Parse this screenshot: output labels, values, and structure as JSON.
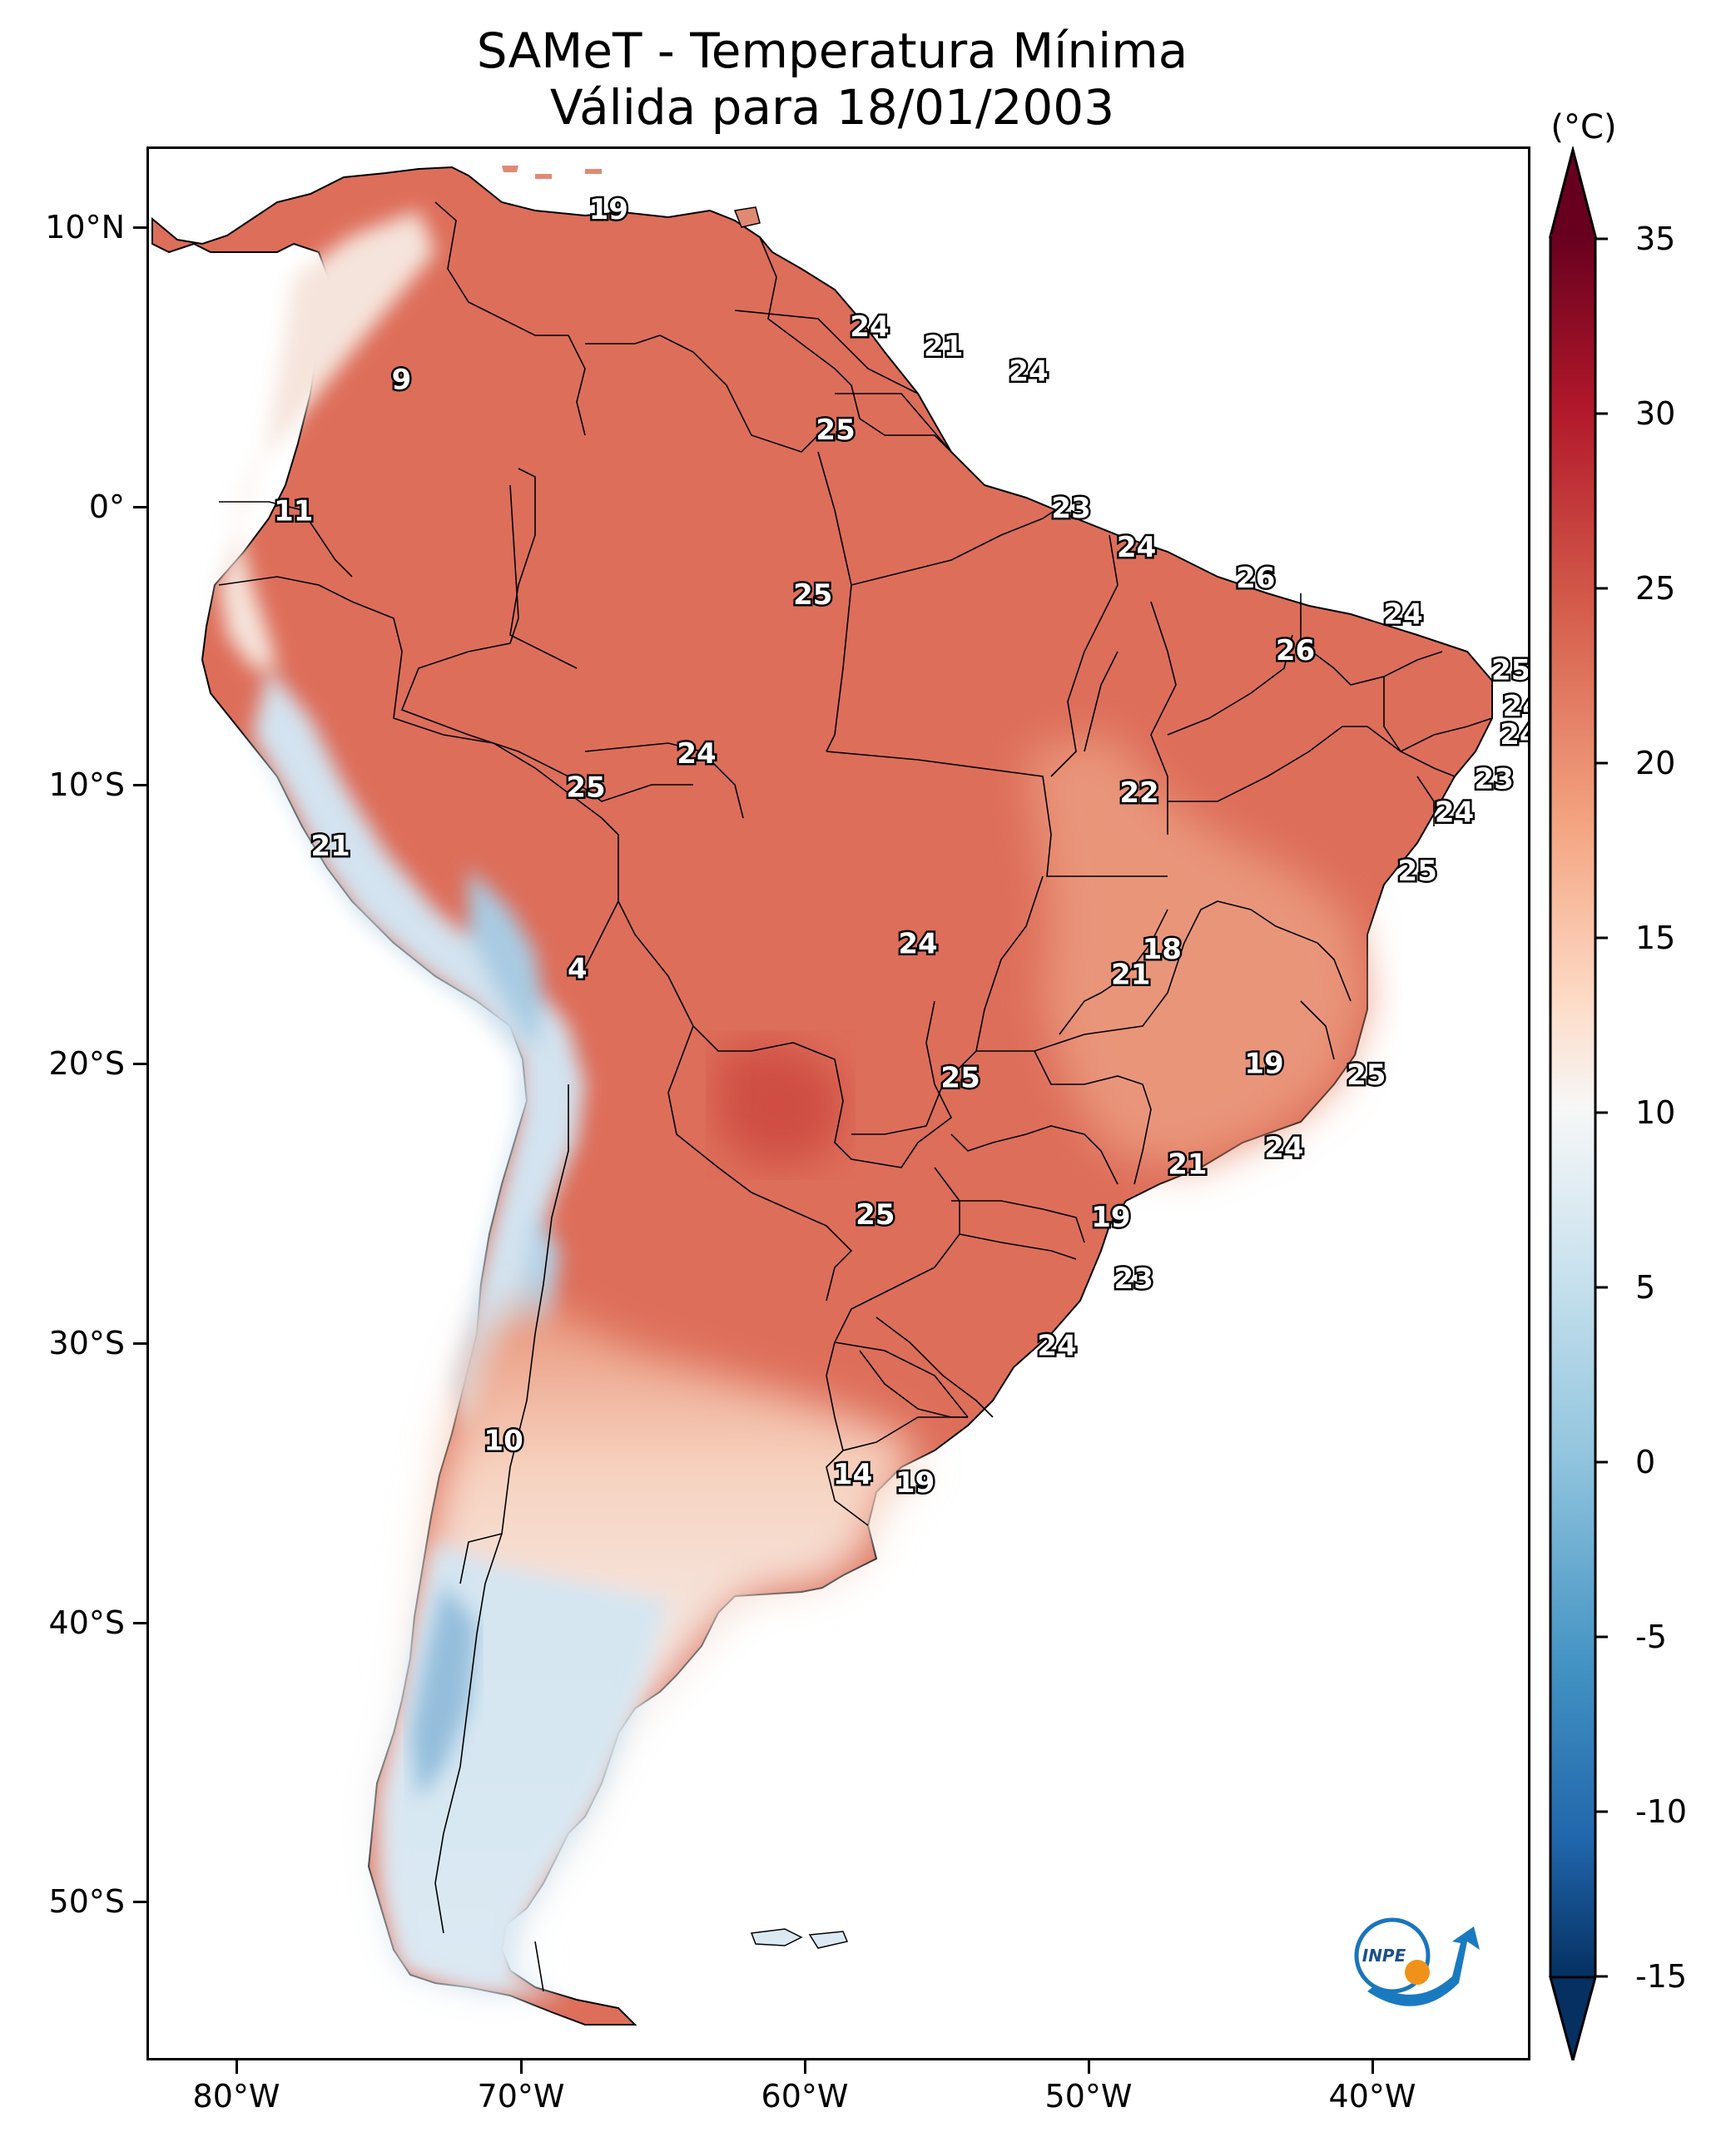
{
  "title": {
    "line1": "SAMeT - Temperatura Mínima",
    "line2": "Válida para 18/01/2003"
  },
  "colorbar": {
    "unit": "(°C)",
    "labels": [
      "35",
      "30",
      "25",
      "20",
      "15",
      "10",
      "5",
      "0",
      "-5",
      "-10",
      "-15"
    ],
    "range": [
      -15,
      35
    ],
    "extend": "both",
    "colormap": "RdBu_r",
    "colors": {
      "max": "#67001f",
      "high": "#d6604d",
      "mid": "#f7f7f7",
      "low": "#4393c3",
      "min": "#053061"
    }
  },
  "axes": {
    "lat_labels": [
      "10°N",
      "0°",
      "10°S",
      "20°S",
      "30°S",
      "40°S",
      "50°S"
    ],
    "lon_labels": [
      "80°W",
      "70°W",
      "60°W",
      "50°W",
      "40°W"
    ]
  },
  "logo": {
    "text": "INPE"
  },
  "station_values": [
    {
      "lon": -67.0,
      "lat": 10.7,
      "value": "19"
    },
    {
      "lon": -57.8,
      "lat": 6.5,
      "value": "24"
    },
    {
      "lon": -55.2,
      "lat": 5.8,
      "value": "21"
    },
    {
      "lon": -52.2,
      "lat": 4.9,
      "value": "24"
    },
    {
      "lon": -74.3,
      "lat": 4.6,
      "value": "9"
    },
    {
      "lon": -59.0,
      "lat": 2.8,
      "value": "25"
    },
    {
      "lon": -78.1,
      "lat": -0.1,
      "value": "11"
    },
    {
      "lon": -50.7,
      "lat": 0.0,
      "value": "23"
    },
    {
      "lon": -48.4,
      "lat": -1.4,
      "value": "24"
    },
    {
      "lon": -44.2,
      "lat": -2.5,
      "value": "26"
    },
    {
      "lon": -59.8,
      "lat": -3.1,
      "value": "25"
    },
    {
      "lon": -39.0,
      "lat": -3.8,
      "value": "24"
    },
    {
      "lon": -42.8,
      "lat": -5.1,
      "value": "26"
    },
    {
      "lon": -35.2,
      "lat": -5.8,
      "value": "25"
    },
    {
      "lon": -34.8,
      "lat": -7.1,
      "value": "24"
    },
    {
      "lon": -34.9,
      "lat": -8.1,
      "value": "24"
    },
    {
      "lon": -63.9,
      "lat": -8.8,
      "value": "24"
    },
    {
      "lon": -35.8,
      "lat": -9.7,
      "value": "23"
    },
    {
      "lon": -67.8,
      "lat": -10.0,
      "value": "25"
    },
    {
      "lon": -48.3,
      "lat": -10.2,
      "value": "22"
    },
    {
      "lon": -37.2,
      "lat": -10.9,
      "value": "24"
    },
    {
      "lon": -76.8,
      "lat": -12.1,
      "value": "21"
    },
    {
      "lon": -38.5,
      "lat": -13.0,
      "value": "25"
    },
    {
      "lon": -56.1,
      "lat": -15.6,
      "value": "24"
    },
    {
      "lon": -47.5,
      "lat": -15.8,
      "value": "18"
    },
    {
      "lon": -48.6,
      "lat": -16.7,
      "value": "21"
    },
    {
      "lon": -68.1,
      "lat": -16.5,
      "value": "4"
    },
    {
      "lon": -43.9,
      "lat": -19.9,
      "value": "19"
    },
    {
      "lon": -40.3,
      "lat": -20.3,
      "value": "25"
    },
    {
      "lon": -54.6,
      "lat": -20.4,
      "value": "25"
    },
    {
      "lon": -43.2,
      "lat": -22.9,
      "value": "24"
    },
    {
      "lon": -46.6,
      "lat": -23.5,
      "value": "21"
    },
    {
      "lon": -57.6,
      "lat": -25.3,
      "value": "25"
    },
    {
      "lon": -49.3,
      "lat": -25.4,
      "value": "19"
    },
    {
      "lon": -48.5,
      "lat": -27.6,
      "value": "23"
    },
    {
      "lon": -51.2,
      "lat": -30.0,
      "value": "24"
    },
    {
      "lon": -70.7,
      "lat": -33.4,
      "value": "10"
    },
    {
      "lon": -58.4,
      "lat": -34.6,
      "value": "14"
    },
    {
      "lon": -56.2,
      "lat": -34.9,
      "value": "19"
    }
  ]
}
